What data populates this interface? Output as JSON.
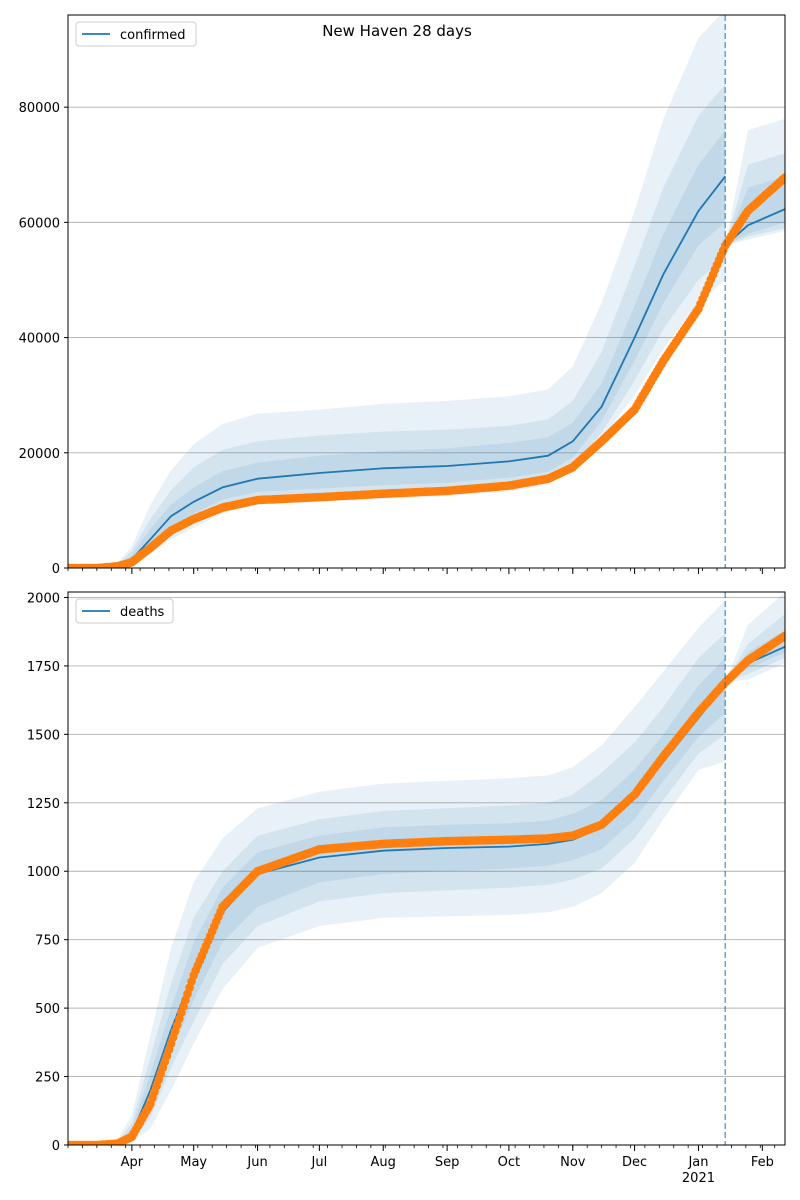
{
  "figure": {
    "title": "New Haven 28 days"
  },
  "colors": {
    "model": "#1f77b4",
    "observed": "#ff7f0e",
    "band": "#1f77b4",
    "grid": "#b0b0b0",
    "forecast_line": "#1f77b4"
  },
  "x_axis": {
    "month_ticks": [
      {
        "date": "2020-04-01",
        "label": "Apr"
      },
      {
        "date": "2020-05-01",
        "label": "May"
      },
      {
        "date": "2020-06-01",
        "label": "Jun"
      },
      {
        "date": "2020-07-01",
        "label": "Jul"
      },
      {
        "date": "2020-08-01",
        "label": "Aug"
      },
      {
        "date": "2020-09-01",
        "label": "Sep"
      },
      {
        "date": "2020-10-01",
        "label": "Oct"
      },
      {
        "date": "2020-11-01",
        "label": "Nov"
      },
      {
        "date": "2020-12-01",
        "label": "Dec"
      },
      {
        "date": "2021-01-01",
        "label": "Jan"
      },
      {
        "date": "2021-02-01",
        "label": "Feb"
      }
    ],
    "year_label": "2021",
    "range": [
      "2020-03-01",
      "2021-02-12"
    ],
    "forecast_date": "2021-01-14"
  },
  "chart_data": [
    {
      "type": "line",
      "panel": "top",
      "title": "New Haven 28 days",
      "legend": {
        "label": "confirmed",
        "placement": "top-left"
      },
      "ylim": [
        0,
        96000
      ],
      "yticks": [
        "0",
        "20000",
        "40000",
        "60000",
        "80000"
      ],
      "grid": "y",
      "x": [
        "2020-03-01",
        "2020-03-15",
        "2020-03-25",
        "2020-04-01",
        "2020-04-10",
        "2020-04-20",
        "2020-05-01",
        "2020-05-15",
        "2020-06-01",
        "2020-07-01",
        "2020-08-01",
        "2020-09-01",
        "2020-10-01",
        "2020-10-20",
        "2020-11-01",
        "2020-11-15",
        "2020-12-01",
        "2020-12-15",
        "2021-01-01",
        "2021-01-14",
        "2021-01-25",
        "2021-02-12"
      ],
      "series": [
        {
          "name": "confirmed",
          "role": "model median",
          "values": [
            0,
            0,
            300,
            1500,
            5000,
            9000,
            11500,
            14000,
            15500,
            16500,
            17300,
            17700,
            18500,
            19500,
            22000,
            28000,
            40000,
            51000,
            62000,
            68000,
            59500,
            62300
          ]
        },
        {
          "role": "observed",
          "values": [
            0,
            0,
            300,
            1000,
            3500,
            6500,
            8500,
            10500,
            11800,
            12300,
            12900,
            13400,
            14300,
            15500,
            17500,
            22000,
            27500,
            36000,
            45000,
            56000,
            62000,
            67800
          ]
        }
      ],
      "bands": [
        {
          "level": "outer",
          "lower": [
            0,
            0,
            100,
            400,
            2500,
            5000,
            7000,
            9500,
            11000,
            11500,
            12000,
            12500,
            13300,
            14500,
            17000,
            22500,
            30000,
            38000,
            46000,
            50000,
            57000,
            58500
          ],
          "upper": [
            0,
            0,
            800,
            3800,
            11000,
            17000,
            21500,
            25000,
            26800,
            27500,
            28500,
            29000,
            29800,
            31000,
            35000,
            46000,
            62000,
            78000,
            92000,
            97000,
            76000,
            78000
          ]
        },
        {
          "level": "middle",
          "lower": [
            0,
            0,
            150,
            700,
            3200,
            6200,
            8300,
            10700,
            12000,
            12400,
            13000,
            13500,
            14300,
            15300,
            17700,
            23500,
            32500,
            41500,
            50000,
            54000,
            57500,
            59000
          ],
          "upper": [
            0,
            0,
            600,
            3000,
            8500,
            13500,
            17500,
            20500,
            22000,
            23000,
            23700,
            24000,
            24700,
            25800,
            29000,
            37500,
            52500,
            66000,
            78500,
            84000,
            70000,
            72000
          ]
        },
        {
          "level": "inner",
          "lower": [
            0,
            0,
            200,
            1000,
            3800,
            7200,
            9400,
            11900,
            13200,
            13800,
            14400,
            14800,
            15700,
            16700,
            19200,
            25500,
            36000,
            46000,
            56000,
            60000,
            58000,
            60000
          ],
          "upper": [
            0,
            0,
            450,
            2200,
            6800,
            11000,
            14000,
            16800,
            18300,
            19500,
            20300,
            20800,
            21700,
            22700,
            25200,
            32000,
            45500,
            58000,
            70000,
            76000,
            66000,
            68000
          ]
        }
      ]
    },
    {
      "type": "line",
      "panel": "bottom",
      "legend": {
        "label": "deaths",
        "placement": "top-left"
      },
      "ylim": [
        0,
        2020
      ],
      "yticks": [
        "0",
        "250",
        "500",
        "750",
        "1000",
        "1250",
        "1500",
        "1750",
        "2000"
      ],
      "grid": "y",
      "x": [
        "2020-03-01",
        "2020-03-15",
        "2020-03-25",
        "2020-04-01",
        "2020-04-10",
        "2020-04-20",
        "2020-05-01",
        "2020-05-15",
        "2020-06-01",
        "2020-07-01",
        "2020-08-01",
        "2020-09-01",
        "2020-10-01",
        "2020-10-20",
        "2020-11-01",
        "2020-11-15",
        "2020-12-01",
        "2020-12-15",
        "2021-01-01",
        "2021-01-14",
        "2021-01-25",
        "2021-02-12"
      ],
      "series": [
        {
          "name": "deaths",
          "role": "model median",
          "values": [
            0,
            0,
            5,
            40,
            200,
            420,
            630,
            850,
            990,
            1050,
            1075,
            1085,
            1090,
            1100,
            1115,
            1160,
            1270,
            1400,
            1560,
            1680,
            1760,
            1820
          ]
        },
        {
          "role": "observed",
          "values": [
            0,
            0,
            5,
            30,
            150,
            370,
            620,
            870,
            1000,
            1080,
            1100,
            1110,
            1115,
            1120,
            1130,
            1170,
            1280,
            1420,
            1580,
            1690,
            1770,
            1860
          ]
        }
      ],
      "bands": [
        {
          "level": "outer",
          "lower": [
            0,
            0,
            0,
            10,
            60,
            200,
            370,
            570,
            720,
            800,
            830,
            835,
            840,
            850,
            870,
            920,
            1030,
            1190,
            1370,
            1400,
            1700,
            1760
          ],
          "upper": [
            0,
            0,
            20,
            110,
            400,
            720,
            960,
            1120,
            1230,
            1290,
            1320,
            1330,
            1340,
            1350,
            1380,
            1460,
            1600,
            1730,
            1890,
            1990,
            1900,
            2020
          ]
        },
        {
          "level": "middle",
          "lower": [
            0,
            0,
            2,
            20,
            100,
            280,
            450,
            660,
            800,
            890,
            920,
            930,
            940,
            950,
            970,
            1010,
            1120,
            1260,
            1430,
            1500,
            1720,
            1780
          ],
          "upper": [
            0,
            0,
            12,
            80,
            320,
            590,
            830,
            1000,
            1130,
            1190,
            1220,
            1230,
            1240,
            1250,
            1280,
            1360,
            1470,
            1600,
            1780,
            1870,
            1830,
            1940
          ]
        },
        {
          "level": "inner",
          "lower": [
            0,
            0,
            3,
            28,
            140,
            340,
            530,
            740,
            870,
            960,
            990,
            1000,
            1010,
            1020,
            1040,
            1080,
            1190,
            1330,
            1490,
            1580,
            1740,
            1800
          ],
          "upper": [
            0,
            0,
            8,
            60,
            260,
            500,
            740,
            940,
            1070,
            1130,
            1160,
            1170,
            1175,
            1185,
            1210,
            1260,
            1370,
            1500,
            1680,
            1780,
            1800,
            1880
          ]
        }
      ]
    }
  ]
}
